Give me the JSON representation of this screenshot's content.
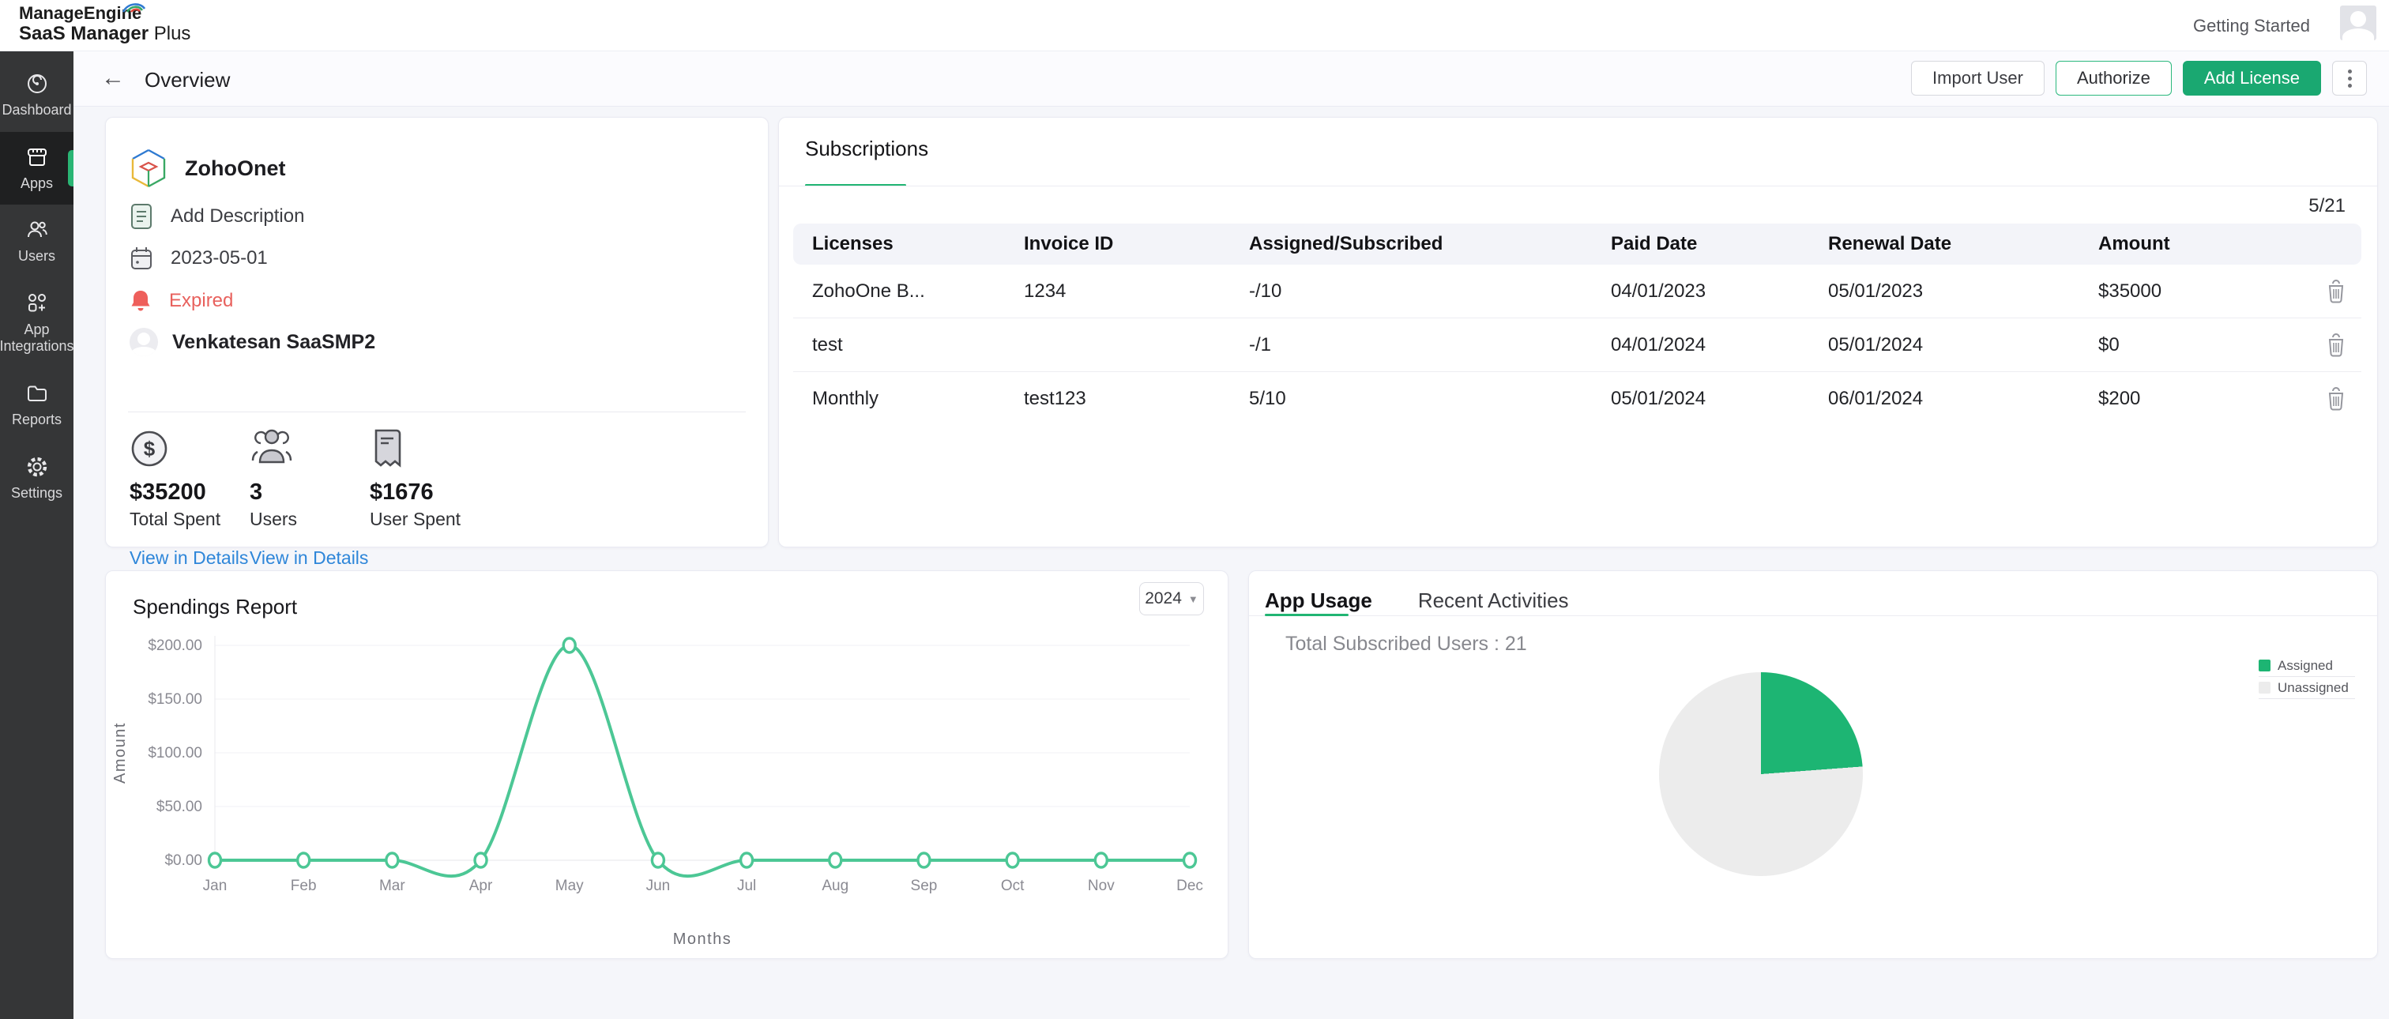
{
  "brand": {
    "line1": "ManageEngine",
    "line2_bold": "SaaS Manager",
    "line2_rest": " Plus"
  },
  "header": {
    "getting_started": "Getting Started"
  },
  "sidebar": {
    "items": [
      {
        "label": "Dashboard"
      },
      {
        "label": "Apps",
        "active": true
      },
      {
        "label": "Users"
      },
      {
        "label": "App Integrations"
      },
      {
        "label": "Reports"
      },
      {
        "label": "Settings"
      }
    ]
  },
  "toolbar": {
    "back": "←",
    "title": "Overview",
    "import_user": "Import User",
    "authorize": "Authorize",
    "add_license": "Add License"
  },
  "app_info": {
    "name": "ZohoOnet",
    "add_description": "Add Description",
    "created_date": "2023-05-01",
    "status": "Expired",
    "owner": "Venkatesan SaaSMP2"
  },
  "stats": [
    {
      "value": "$35200",
      "label": "Total Spent",
      "link": "View in Details"
    },
    {
      "value": "3",
      "label": "Users",
      "link": "View in Details"
    },
    {
      "value": "$1676",
      "label": "User Spent",
      "link": ""
    }
  ],
  "subscriptions": {
    "tab": "Subscriptions",
    "count": "5/21",
    "columns": [
      "Licenses",
      "Invoice ID",
      "Assigned/Subscribed",
      "Paid Date",
      "Renewal Date",
      "Amount"
    ],
    "rows": [
      [
        "ZohoOne B...",
        "1234",
        "-/10",
        "04/01/2023",
        "05/01/2023",
        "$35000"
      ],
      [
        "test",
        "",
        "-/1",
        "04/01/2024",
        "05/01/2024",
        "$0"
      ],
      [
        "Monthly",
        "test123",
        "5/10",
        "05/01/2024",
        "06/01/2024",
        "$200"
      ]
    ]
  },
  "spendings": {
    "title": "Spendings Report",
    "year": "2024"
  },
  "usage": {
    "tabs": [
      "App Usage",
      "Recent Activities"
    ],
    "active_tab": "App Usage",
    "total_label": "Total Subscribed Users : 21"
  },
  "chart_data": [
    {
      "type": "line",
      "title": "Spendings Report",
      "x": [
        "Jan",
        "Feb",
        "Mar",
        "Apr",
        "May",
        "Jun",
        "Jul",
        "Aug",
        "Sep",
        "Oct",
        "Nov",
        "Dec"
      ],
      "series": [
        {
          "name": "Amount",
          "values": [
            0,
            0,
            0,
            0,
            200,
            0,
            0,
            0,
            0,
            0,
            0,
            0
          ]
        }
      ],
      "xlabel": "Months",
      "ylabel": "Amount",
      "ylim": [
        0,
        200
      ],
      "yticks": [
        "$0.00",
        "$50.00",
        "$100.00",
        "$150.00",
        "$200.00"
      ],
      "grid": true,
      "line_color": "#4cc795"
    },
    {
      "type": "pie",
      "title": "App Usage",
      "total": 21,
      "slices": [
        {
          "label": "Assigned",
          "value": 5,
          "color": "#1db573"
        },
        {
          "label": "Unassigned",
          "value": 16,
          "color": "#ececec"
        }
      ],
      "legend_position": "right"
    }
  ],
  "colors": {
    "accent_green": "#1aa871",
    "sidebar_accent": "#2ab574",
    "line_green": "#4cc795",
    "pie_green": "#1db573",
    "pie_gray": "#ececec",
    "expired_red": "#e8615d",
    "link_blue": "#2e86d9"
  }
}
